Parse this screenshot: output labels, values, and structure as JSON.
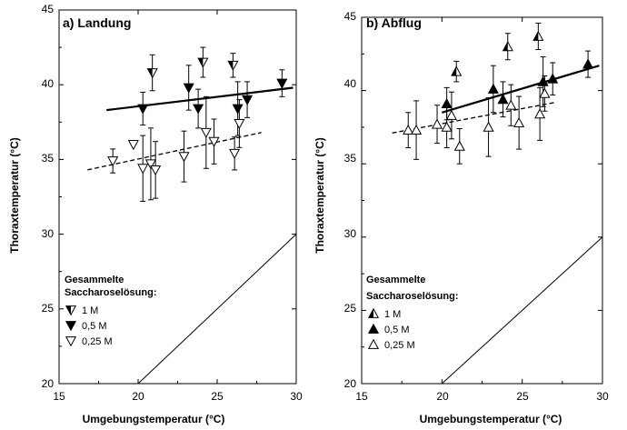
{
  "chart_data": [
    {
      "type": "scatter",
      "title": "a) Landung",
      "xlabel": "Umgebungstemperatur (°C)",
      "ylabel": "Thoraxtemperatur (°C)",
      "xlim": [
        15,
        30
      ],
      "ylim": [
        20,
        45
      ],
      "xticks": [
        "15",
        "20",
        "25",
        "30"
      ],
      "yticks": [
        "20",
        "25",
        "30",
        "35",
        "40",
        "45"
      ],
      "legend_title": [
        "Gesammelte",
        "Saccharoselösung:"
      ],
      "legend_placement": "lower-left",
      "grid": false,
      "series": [
        {
          "name": "1 M",
          "marker": "triangle-down-half",
          "points": [
            {
              "x": 20.9,
              "y": 40.8,
              "err": 1.2
            },
            {
              "x": 24.1,
              "y": 41.5,
              "err": 1.0
            },
            {
              "x": 26.0,
              "y": 41.3,
              "err": 0.8
            }
          ]
        },
        {
          "name": "0,5 M",
          "marker": "triangle-down-filled",
          "points": [
            {
              "x": 20.3,
              "y": 38.4,
              "err": 1.1
            },
            {
              "x": 23.2,
              "y": 39.8,
              "err": 1.5
            },
            {
              "x": 23.8,
              "y": 38.4,
              "err": 1.3
            },
            {
              "x": 26.3,
              "y": 38.4,
              "err": 1.8
            },
            {
              "x": 26.9,
              "y": 39.0,
              "err": 1.2
            },
            {
              "x": 29.1,
              "y": 40.1,
              "err": 0.9
            }
          ]
        },
        {
          "name": "0,25 M",
          "marker": "triangle-down-open",
          "points": [
            {
              "x": 18.4,
              "y": 34.9,
              "err": 0.8
            },
            {
              "x": 19.7,
              "y": 36.0,
              "err": 0
            },
            {
              "x": 20.3,
              "y": 34.4,
              "err": 2.2
            },
            {
              "x": 20.8,
              "y": 34.7,
              "err": 2.4
            },
            {
              "x": 21.1,
              "y": 34.3,
              "err": 1.9
            },
            {
              "x": 22.9,
              "y": 35.2,
              "err": 1.7
            },
            {
              "x": 24.3,
              "y": 36.8,
              "err": 2.4
            },
            {
              "x": 24.8,
              "y": 36.2,
              "err": 1.5
            },
            {
              "x": 26.1,
              "y": 35.4,
              "err": 1.1
            },
            {
              "x": 26.4,
              "y": 37.4,
              "err": 1.6
            }
          ]
        }
      ],
      "fit_lines": [
        {
          "style": "solid",
          "x": [
            18.0,
            29.8
          ],
          "y": [
            38.3,
            39.8
          ]
        },
        {
          "style": "dashed",
          "x": [
            16.8,
            27.8
          ],
          "y": [
            34.3,
            36.8
          ]
        },
        {
          "style": "thin",
          "x": [
            20,
            30
          ],
          "y": [
            20,
            30
          ]
        }
      ]
    },
    {
      "type": "scatter",
      "title": "b) Abflug",
      "xlabel": "Umgebungstemperatur (°C)",
      "ylabel": "Thoraxtemperatur (°C)",
      "xlim": [
        15,
        30
      ],
      "ylim": [
        20,
        45
      ],
      "xticks": [
        "15",
        "20",
        "25",
        "30"
      ],
      "yticks": [
        "20",
        "25",
        "30",
        "35",
        "40",
        "45"
      ],
      "legend_title": [
        "Gesammelte",
        "Saccharoselösung:"
      ],
      "legend_placement": "lower-left",
      "grid": false,
      "series": [
        {
          "name": "1 M",
          "marker": "triangle-up-half",
          "points": [
            {
              "x": 20.9,
              "y": 41.3,
              "err": 0.7
            },
            {
              "x": 24.1,
              "y": 43.0,
              "err": 0.9
            },
            {
              "x": 26.0,
              "y": 43.7,
              "err": 0.9
            }
          ]
        },
        {
          "name": "0,5 M",
          "marker": "triangle-up-filled",
          "points": [
            {
              "x": 20.3,
              "y": 39.1,
              "err": 1.1
            },
            {
              "x": 23.2,
              "y": 40.1,
              "err": 1.6
            },
            {
              "x": 23.8,
              "y": 39.4,
              "err": 1.2
            },
            {
              "x": 26.3,
              "y": 40.6,
              "err": 1.7
            },
            {
              "x": 26.9,
              "y": 40.8,
              "err": 1.1
            },
            {
              "x": 29.1,
              "y": 41.8,
              "err": 0.9
            }
          ]
        },
        {
          "name": "0,25 M",
          "marker": "triangle-up-open",
          "points": [
            {
              "x": 17.9,
              "y": 37.3,
              "err": 1.2
            },
            {
              "x": 18.4,
              "y": 37.3,
              "err": 2.0
            },
            {
              "x": 19.7,
              "y": 37.7,
              "err": 1.3
            },
            {
              "x": 20.3,
              "y": 37.5,
              "err": 1.4
            },
            {
              "x": 20.6,
              "y": 38.3,
              "err": 1.6
            },
            {
              "x": 21.1,
              "y": 36.2,
              "err": 1.2
            },
            {
              "x": 22.9,
              "y": 37.5,
              "err": 2.0
            },
            {
              "x": 24.3,
              "y": 39.0,
              "err": 1.4
            },
            {
              "x": 24.8,
              "y": 37.8,
              "err": 1.8
            },
            {
              "x": 26.1,
              "y": 38.4,
              "err": 1.8
            },
            {
              "x": 26.4,
              "y": 39.8,
              "err": 1.2
            }
          ]
        }
      ],
      "fit_lines": [
        {
          "style": "solid",
          "x": [
            20.0,
            29.8
          ],
          "y": [
            38.5,
            41.7
          ]
        },
        {
          "style": "dashed",
          "x": [
            16.9,
            27.1
          ],
          "y": [
            37.1,
            39.2
          ]
        },
        {
          "style": "thin",
          "x": [
            20,
            30
          ],
          "y": [
            20,
            30
          ]
        }
      ]
    }
  ]
}
